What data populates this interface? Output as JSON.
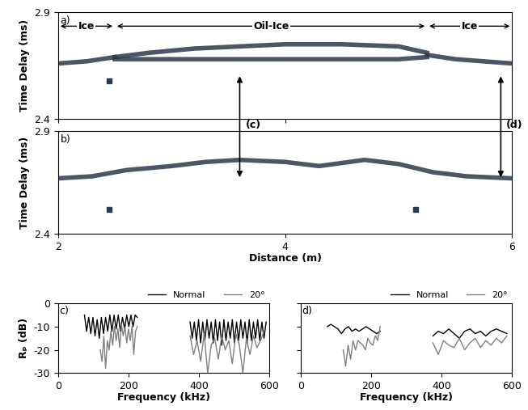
{
  "chart_data": [
    {
      "type": "echogram",
      "title": "a)",
      "ylabel": "Time Delay (ms)",
      "xlim": [
        2,
        6
      ],
      "ylim": [
        2.4,
        2.9
      ],
      "xticks": [
        2,
        4,
        6
      ],
      "yticks": [
        2.4,
        2.9
      ],
      "tick_labels": "y",
      "regions": [
        {
          "label": "Ice",
          "x": [
            2,
            2.5
          ]
        },
        {
          "label": "Oil-Ice",
          "x": [
            2.5,
            5.25
          ]
        },
        {
          "label": "Ice",
          "x": [
            5.25,
            6
          ]
        }
      ],
      "series": [
        {
          "color": "#2b3a4a",
          "x": [
            2,
            2.25,
            2.5
          ],
          "values": [
            2.66,
            2.67,
            2.69
          ]
        },
        {
          "color": "#2b3a4a",
          "x": [
            2.5,
            2.8,
            3.2,
            3.6,
            4.0,
            4.5,
            5.0,
            5.25
          ],
          "values": [
            2.69,
            2.71,
            2.73,
            2.74,
            2.75,
            2.75,
            2.74,
            2.71
          ]
        },
        {
          "color": "#2b3a4a",
          "x": [
            2.5,
            3,
            3.5,
            4,
            4.5,
            5,
            5.25
          ],
          "values": [
            2.68,
            2.68,
            2.68,
            2.68,
            2.68,
            2.68,
            2.69
          ]
        },
        {
          "color": "#2b3a4a",
          "x": [
            5.25,
            5.5,
            5.75,
            6
          ],
          "values": [
            2.7,
            2.68,
            2.67,
            2.66
          ]
        },
        {
          "type": "scatter",
          "marker": "s",
          "color": "#2b3a4a",
          "x": [
            2.45
          ],
          "values": [
            2.58
          ]
        }
      ]
    },
    {
      "type": "echogram",
      "title": "b)",
      "ylabel": "Time Delay (ms)",
      "xlabel": "Distance (m)",
      "xlim": [
        2,
        6
      ],
      "ylim": [
        2.4,
        2.9
      ],
      "xticks": [
        2,
        4,
        6
      ],
      "yticks": [
        2.4,
        2.9
      ],
      "annotations": [
        {
          "text": "(c)",
          "x": 3.6
        },
        {
          "text": "(d)",
          "x": 5.9
        }
      ],
      "series": [
        {
          "color": "#2b3a4a",
          "x": [
            2,
            2.3,
            2.6,
            3,
            3.3,
            3.6,
            4,
            4.3,
            4.7,
            5,
            5.3,
            5.6,
            6
          ],
          "values": [
            2.67,
            2.68,
            2.71,
            2.73,
            2.75,
            2.76,
            2.75,
            2.73,
            2.76,
            2.74,
            2.7,
            2.68,
            2.67
          ]
        },
        {
          "type": "scatter",
          "marker": "s",
          "color": "#2b3a4a",
          "x": [
            2.45,
            5.15
          ],
          "values": [
            2.52,
            2.52
          ]
        }
      ]
    },
    {
      "type": "line",
      "title": "c)",
      "ylabel": "Rₚ (dB)",
      "xlabel": "Frequency (kHz)",
      "xlim": [
        0,
        600
      ],
      "ylim": [
        -30,
        0
      ],
      "xticks": [
        0,
        200,
        400,
        600
      ],
      "yticks": [
        -30,
        -20,
        -10,
        0
      ],
      "legend": "upper right",
      "series": [
        {
          "name": "Normal",
          "color": "#000000",
          "x": [
            75,
            81,
            87,
            93,
            99,
            105,
            111,
            117,
            123,
            129,
            135,
            141,
            147,
            153,
            159,
            165,
            171,
            177,
            183,
            189,
            195,
            201,
            207,
            213,
            219,
            225,
            300,
            375,
            381,
            387,
            393,
            399,
            405,
            411,
            417,
            423,
            429,
            435,
            441,
            447,
            453,
            459,
            465,
            471,
            477,
            483,
            489,
            495,
            501,
            507,
            513,
            519,
            525,
            531,
            537,
            543,
            549,
            555,
            561,
            567,
            573,
            579,
            585,
            591
          ],
          "values": [
            -5,
            -12,
            -6,
            -13,
            -6,
            -14,
            -7,
            -15,
            -6,
            -13,
            -6,
            -12,
            -5,
            -12,
            -5,
            -11,
            -5,
            -12,
            -6,
            -11,
            -5,
            -10,
            -5,
            -10,
            -5,
            -6,
            null,
            -8,
            -15,
            -8,
            -16,
            -7,
            -17,
            -8,
            -16,
            -7,
            -15,
            -8,
            -17,
            -7,
            -16,
            -8,
            -18,
            -7,
            -16,
            -8,
            -15,
            -7,
            -17,
            -8,
            -16,
            -7,
            -15,
            -8,
            -17,
            -7,
            -16,
            -8,
            -15,
            -7,
            -16,
            -8,
            -15,
            -8
          ]
        },
        {
          "name": "20°",
          "color": "#808080",
          "x": [
            120,
            125,
            130,
            135,
            140,
            145,
            150,
            155,
            160,
            165,
            170,
            175,
            180,
            185,
            190,
            195,
            200,
            205,
            210,
            215,
            220,
            225,
            300,
            375,
            385,
            395,
            405,
            415,
            425,
            435,
            445,
            455,
            465,
            475,
            485,
            495,
            505,
            515,
            525,
            535,
            545,
            555,
            565,
            575,
            585
          ],
          "values": [
            -20,
            -25,
            -14,
            -28,
            -16,
            -20,
            -12,
            -18,
            -10,
            -16,
            -11,
            -19,
            -9,
            -14,
            -10,
            -17,
            -11,
            -16,
            -10,
            -22,
            -12,
            -10,
            null,
            -14,
            -22,
            -16,
            -25,
            -13,
            -30,
            -18,
            -15,
            -24,
            -14,
            -20,
            -16,
            -26,
            -13,
            -18,
            -30,
            -15,
            -22,
            -14,
            -19,
            -16,
            -12
          ]
        }
      ]
    },
    {
      "type": "line",
      "title": "d)",
      "xlabel": "Frequency (kHz)",
      "xlim": [
        0,
        600
      ],
      "ylim": [
        -30,
        0
      ],
      "xticks": [
        0,
        200,
        400,
        600
      ],
      "yticks": [
        -30,
        -20,
        -10,
        0
      ],
      "tick_labels": "x",
      "legend": "upper right",
      "series": [
        {
          "name": "Normal",
          "color": "#000000",
          "x": [
            75,
            85,
            95,
            105,
            115,
            125,
            135,
            145,
            155,
            165,
            175,
            185,
            195,
            205,
            215,
            225,
            300,
            375,
            390,
            405,
            420,
            435,
            450,
            465,
            480,
            495,
            510,
            525,
            540,
            555,
            570,
            585
          ],
          "values": [
            -10,
            -9,
            -10,
            -11,
            -13,
            -11,
            -10,
            -12,
            -11,
            -12,
            -11,
            -10,
            -11,
            -12,
            -13,
            -12,
            null,
            -14,
            -12,
            -13,
            -11,
            -13,
            -15,
            -12,
            -11,
            -13,
            -12,
            -14,
            -12,
            -11,
            -12,
            -13
          ]
        },
        {
          "name": "20°",
          "color": "#808080",
          "x": [
            120,
            127,
            134,
            141,
            148,
            155,
            162,
            169,
            176,
            183,
            190,
            197,
            204,
            211,
            218,
            225,
            300,
            375,
            390,
            405,
            420,
            435,
            450,
            465,
            480,
            495,
            510,
            525,
            540,
            555,
            570,
            585
          ],
          "values": [
            -20,
            -27,
            -18,
            -24,
            -16,
            -20,
            -16,
            -17,
            -18,
            -20,
            -15,
            -17,
            -18,
            -14,
            -16,
            -10,
            null,
            -17,
            -22,
            -16,
            -18,
            -19,
            -15,
            -20,
            -17,
            -15,
            -19,
            -16,
            -18,
            -15,
            -17,
            -14
          ]
        }
      ]
    }
  ]
}
